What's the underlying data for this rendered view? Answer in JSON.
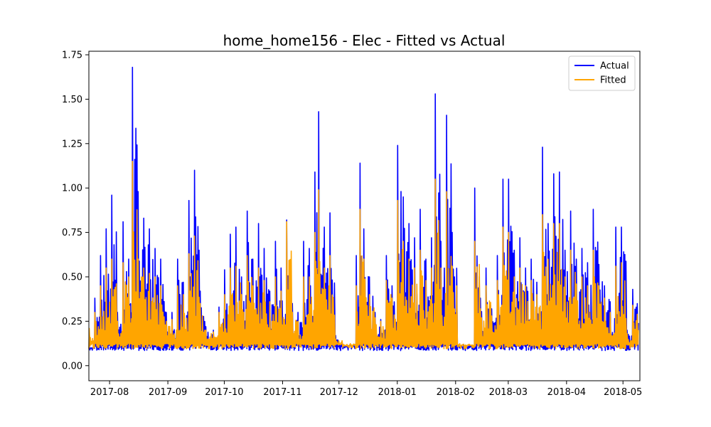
{
  "chart_data": {
    "type": "line",
    "title": "home_home156 - Elec - Fitted vs Actual",
    "xlabel": "",
    "ylabel": "",
    "x_range": [
      "2017-07-21",
      "2018-05-10"
    ],
    "ylim": [
      -0.085,
      1.77
    ],
    "y_ticks": [
      0.0,
      0.25,
      0.5,
      0.75,
      1.0,
      1.25,
      1.5,
      1.75
    ],
    "y_tick_labels": [
      "0.00",
      "0.25",
      "0.50",
      "0.75",
      "1.00",
      "1.25",
      "1.50",
      "1.75"
    ],
    "x_ticks": [
      "2017-08-01",
      "2017-09-01",
      "2017-10-01",
      "2017-11-01",
      "2017-12-01",
      "2018-01-01",
      "2018-02-01",
      "2018-03-01",
      "2018-04-01",
      "2018-05-01"
    ],
    "x_tick_labels": [
      "2017-08",
      "2017-09",
      "2017-10",
      "2017-11",
      "2017-12",
      "2018-01",
      "2018-02",
      "2018-03",
      "2018-04",
      "2018-05"
    ],
    "grid": false,
    "legend_position": "top-right",
    "series": [
      {
        "name": "Actual",
        "color": "#0000ff",
        "points": [
          [
            "2017-07-21",
            0.1
          ],
          [
            "2017-07-24",
            0.38
          ],
          [
            "2017-07-27",
            0.62
          ],
          [
            "2017-07-30",
            0.77
          ],
          [
            "2017-08-02",
            0.96
          ],
          [
            "2017-08-05",
            0.3
          ],
          [
            "2017-08-08",
            0.81
          ],
          [
            "2017-08-11",
            0.6
          ],
          [
            "2017-08-13",
            1.68
          ],
          [
            "2017-08-16",
            0.98
          ],
          [
            "2017-08-19",
            0.83
          ],
          [
            "2017-08-22",
            0.77
          ],
          [
            "2017-08-25",
            0.66
          ],
          [
            "2017-08-28",
            0.6
          ],
          [
            "2017-08-31",
            0.3
          ],
          [
            "2017-09-03",
            0.3
          ],
          [
            "2017-09-06",
            0.6
          ],
          [
            "2017-09-09",
            0.47
          ],
          [
            "2017-09-12",
            0.93
          ],
          [
            "2017-09-15",
            1.1
          ],
          [
            "2017-09-18",
            0.42
          ],
          [
            "2017-09-21",
            0.22
          ],
          [
            "2017-09-25",
            0.2
          ],
          [
            "2017-09-28",
            0.33
          ],
          [
            "2017-10-01",
            0.54
          ],
          [
            "2017-10-04",
            0.74
          ],
          [
            "2017-10-07",
            0.78
          ],
          [
            "2017-10-10",
            0.5
          ],
          [
            "2017-10-13",
            0.87
          ],
          [
            "2017-10-16",
            0.6
          ],
          [
            "2017-10-19",
            0.8
          ],
          [
            "2017-10-22",
            0.66
          ],
          [
            "2017-10-25",
            0.42
          ],
          [
            "2017-10-28",
            0.7
          ],
          [
            "2017-10-31",
            0.55
          ],
          [
            "2017-11-03",
            0.82
          ],
          [
            "2017-11-06",
            0.35
          ],
          [
            "2017-11-09",
            0.3
          ],
          [
            "2017-11-12",
            0.7
          ],
          [
            "2017-11-15",
            0.66
          ],
          [
            "2017-11-18",
            1.09
          ],
          [
            "2017-11-20",
            1.43
          ],
          [
            "2017-11-23",
            0.78
          ],
          [
            "2017-11-26",
            0.86
          ],
          [
            "2017-11-29",
            0.17
          ],
          [
            "2017-12-03",
            0.12
          ],
          [
            "2017-12-07",
            0.12
          ],
          [
            "2017-12-10",
            0.62
          ],
          [
            "2017-12-12",
            1.14
          ],
          [
            "2017-12-14",
            0.77
          ],
          [
            "2017-12-17",
            0.5
          ],
          [
            "2017-12-20",
            0.3
          ],
          [
            "2017-12-23",
            0.26
          ],
          [
            "2017-12-26",
            0.62
          ],
          [
            "2017-12-29",
            0.45
          ],
          [
            "2018-01-01",
            1.24
          ],
          [
            "2018-01-04",
            0.95
          ],
          [
            "2018-01-07",
            0.8
          ],
          [
            "2018-01-10",
            0.72
          ],
          [
            "2018-01-13",
            0.88
          ],
          [
            "2018-01-16",
            0.6
          ],
          [
            "2018-01-19",
            0.72
          ],
          [
            "2018-01-21",
            1.53
          ],
          [
            "2018-01-24",
            0.7
          ],
          [
            "2018-01-27",
            1.41
          ],
          [
            "2018-01-30",
            0.75
          ],
          [
            "2018-02-02",
            0.11
          ],
          [
            "2018-02-05",
            0.12
          ],
          [
            "2018-02-08",
            0.12
          ],
          [
            "2018-02-11",
            1.0
          ],
          [
            "2018-02-14",
            0.38
          ],
          [
            "2018-02-17",
            0.55
          ],
          [
            "2018-02-20",
            0.32
          ],
          [
            "2018-02-23",
            0.62
          ],
          [
            "2018-02-26",
            1.05
          ],
          [
            "2018-03-01",
            1.05
          ],
          [
            "2018-03-04",
            0.65
          ],
          [
            "2018-03-07",
            0.72
          ],
          [
            "2018-03-10",
            0.55
          ],
          [
            "2018-03-13",
            0.6
          ],
          [
            "2018-03-16",
            0.47
          ],
          [
            "2018-03-19",
            1.23
          ],
          [
            "2018-03-22",
            0.8
          ],
          [
            "2018-03-25",
            1.08
          ],
          [
            "2018-03-28",
            1.09
          ],
          [
            "2018-03-31",
            0.65
          ],
          [
            "2018-04-03",
            0.87
          ],
          [
            "2018-04-06",
            0.6
          ],
          [
            "2018-04-09",
            0.66
          ],
          [
            "2018-04-12",
            0.58
          ],
          [
            "2018-04-15",
            0.88
          ],
          [
            "2018-04-18",
            0.57
          ],
          [
            "2018-04-21",
            0.45
          ],
          [
            "2018-04-24",
            0.36
          ],
          [
            "2018-04-27",
            0.78
          ],
          [
            "2018-04-30",
            0.78
          ],
          [
            "2018-05-03",
            0.2
          ],
          [
            "2018-05-06",
            0.43
          ],
          [
            "2018-05-09",
            0.24
          ]
        ]
      },
      {
        "name": "Fitted",
        "color": "#ffa500",
        "points": [
          [
            "2017-07-21",
            0.21
          ],
          [
            "2017-07-24",
            0.3
          ],
          [
            "2017-07-27",
            0.45
          ],
          [
            "2017-07-30",
            0.55
          ],
          [
            "2017-08-02",
            0.6
          ],
          [
            "2017-08-05",
            0.25
          ],
          [
            "2017-08-08",
            0.58
          ],
          [
            "2017-08-11",
            0.5
          ],
          [
            "2017-08-13",
            1.15
          ],
          [
            "2017-08-16",
            0.6
          ],
          [
            "2017-08-19",
            0.55
          ],
          [
            "2017-08-22",
            0.52
          ],
          [
            "2017-08-25",
            0.5
          ],
          [
            "2017-08-28",
            0.45
          ],
          [
            "2017-08-31",
            0.25
          ],
          [
            "2017-09-03",
            0.26
          ],
          [
            "2017-09-06",
            0.45
          ],
          [
            "2017-09-09",
            0.4
          ],
          [
            "2017-09-12",
            0.63
          ],
          [
            "2017-09-15",
            0.73
          ],
          [
            "2017-09-18",
            0.35
          ],
          [
            "2017-09-21",
            0.2
          ],
          [
            "2017-09-25",
            0.19
          ],
          [
            "2017-09-28",
            0.3
          ],
          [
            "2017-10-01",
            0.4
          ],
          [
            "2017-10-04",
            0.55
          ],
          [
            "2017-10-07",
            0.56
          ],
          [
            "2017-10-10",
            0.4
          ],
          [
            "2017-10-13",
            0.62
          ],
          [
            "2017-10-16",
            0.45
          ],
          [
            "2017-10-19",
            0.55
          ],
          [
            "2017-10-22",
            0.48
          ],
          [
            "2017-10-25",
            0.36
          ],
          [
            "2017-10-28",
            0.5
          ],
          [
            "2017-10-31",
            0.42
          ],
          [
            "2017-11-03",
            0.81
          ],
          [
            "2017-11-06",
            0.3
          ],
          [
            "2017-11-09",
            0.25
          ],
          [
            "2017-11-12",
            0.5
          ],
          [
            "2017-11-15",
            0.5
          ],
          [
            "2017-11-18",
            0.75
          ],
          [
            "2017-11-20",
            0.99
          ],
          [
            "2017-11-23",
            0.55
          ],
          [
            "2017-11-26",
            0.62
          ],
          [
            "2017-11-29",
            0.15
          ],
          [
            "2017-12-03",
            0.12
          ],
          [
            "2017-12-07",
            0.12
          ],
          [
            "2017-12-10",
            0.45
          ],
          [
            "2017-12-12",
            0.88
          ],
          [
            "2017-12-14",
            0.6
          ],
          [
            "2017-12-17",
            0.4
          ],
          [
            "2017-12-20",
            0.27
          ],
          [
            "2017-12-23",
            0.25
          ],
          [
            "2017-12-26",
            0.48
          ],
          [
            "2017-12-29",
            0.38
          ],
          [
            "2018-01-01",
            0.93
          ],
          [
            "2018-01-04",
            0.7
          ],
          [
            "2018-01-07",
            0.6
          ],
          [
            "2018-01-10",
            0.55
          ],
          [
            "2018-01-13",
            0.65
          ],
          [
            "2018-01-16",
            0.48
          ],
          [
            "2018-01-19",
            0.55
          ],
          [
            "2018-01-21",
            1.05
          ],
          [
            "2018-01-24",
            0.55
          ],
          [
            "2018-01-27",
            0.98
          ],
          [
            "2018-01-30",
            0.56
          ],
          [
            "2018-02-02",
            0.12
          ],
          [
            "2018-02-05",
            0.12
          ],
          [
            "2018-02-08",
            0.12
          ],
          [
            "2018-02-11",
            0.7
          ],
          [
            "2018-02-14",
            0.32
          ],
          [
            "2018-02-17",
            0.45
          ],
          [
            "2018-02-20",
            0.28
          ],
          [
            "2018-02-23",
            0.48
          ],
          [
            "2018-02-26",
            0.78
          ],
          [
            "2018-03-01",
            0.75
          ],
          [
            "2018-03-04",
            0.5
          ],
          [
            "2018-03-07",
            0.55
          ],
          [
            "2018-03-10",
            0.45
          ],
          [
            "2018-03-13",
            0.48
          ],
          [
            "2018-03-16",
            0.4
          ],
          [
            "2018-03-19",
            0.85
          ],
          [
            "2018-03-22",
            0.6
          ],
          [
            "2018-03-25",
            0.8
          ],
          [
            "2018-03-28",
            0.8
          ],
          [
            "2018-03-31",
            0.5
          ],
          [
            "2018-04-03",
            0.65
          ],
          [
            "2018-04-06",
            0.46
          ],
          [
            "2018-04-09",
            0.5
          ],
          [
            "2018-04-12",
            0.45
          ],
          [
            "2018-04-15",
            0.65
          ],
          [
            "2018-04-18",
            0.45
          ],
          [
            "2018-04-21",
            0.38
          ],
          [
            "2018-04-24",
            0.3
          ],
          [
            "2018-04-27",
            0.56
          ],
          [
            "2018-04-30",
            0.58
          ],
          [
            "2018-05-03",
            0.18
          ],
          [
            "2018-05-06",
            0.34
          ],
          [
            "2018-05-09",
            0.2
          ]
        ]
      }
    ]
  }
}
